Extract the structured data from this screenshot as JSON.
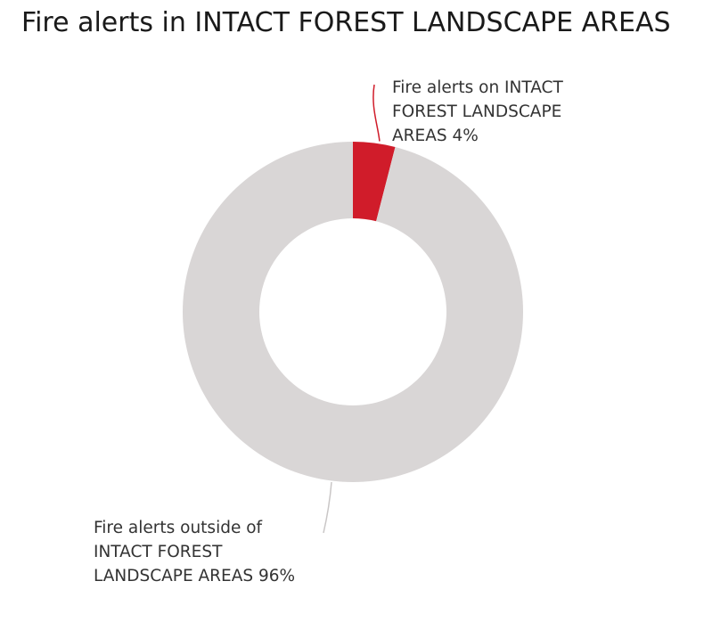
{
  "chart_data": {
    "type": "pie",
    "title": "Fire alerts in INTACT FOREST LANDSCAPE AREAS",
    "donut": true,
    "slices": [
      {
        "label_lines": [
          "Fire alerts on INTACT",
          "FOREST LANDSCAPE",
          "AREAS 4%"
        ],
        "value": 4,
        "color": "#d01c2a"
      },
      {
        "label_lines": [
          "Fire alerts outside of",
          "INTACT FOREST",
          "LANDSCAPE AREAS 96%"
        ],
        "value": 96,
        "color": "#d9d6d6"
      }
    ],
    "connector_colors": [
      "#d01c2a",
      "#c9c6c6"
    ]
  }
}
